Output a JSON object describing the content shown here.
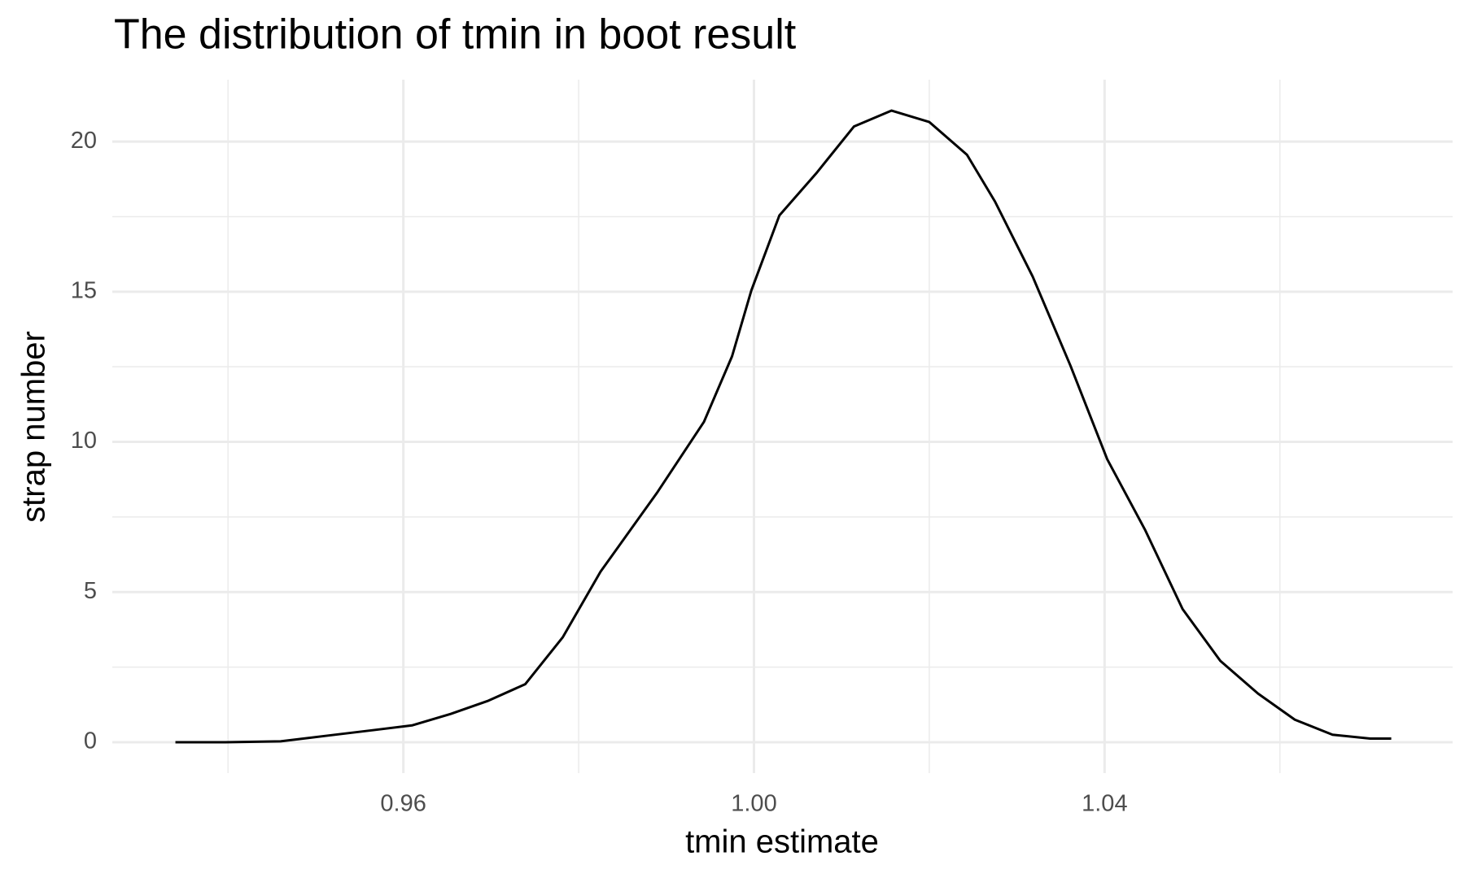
{
  "chart_data": {
    "type": "line",
    "title": "The distribution of tmin in boot result",
    "x_label": "tmin estimate",
    "y_label": "strap number",
    "x": [
      0.934,
      0.9397,
      0.946,
      0.9514,
      0.9568,
      0.961,
      0.9654,
      0.9696,
      0.9739,
      0.9782,
      0.9825,
      0.989,
      0.9943,
      0.9975,
      0.9997,
      1.0029,
      1.0071,
      1.0114,
      1.0157,
      1.02,
      1.0243,
      1.0275,
      1.0318,
      1.0361,
      1.0403,
      1.0446,
      1.0489,
      1.0532,
      1.0575,
      1.0617,
      1.066,
      1.0703,
      1.0727
    ],
    "values": [
      0,
      0,
      0.03,
      0.22,
      0.41,
      0.56,
      0.94,
      1.37,
      1.93,
      3.5,
      5.68,
      8.33,
      10.67,
      12.85,
      15.04,
      17.54,
      18.94,
      20.5,
      21.03,
      20.65,
      19.56,
      18.0,
      15.5,
      12.54,
      9.42,
      7.08,
      4.43,
      2.71,
      1.62,
      0.75,
      0.25,
      0.12,
      0.12
    ],
    "color": "#000000",
    "xlim": [
      0.9268,
      1.0797
    ],
    "ylim": [
      -1.03,
      22.06
    ],
    "xticks": [
      0.96,
      {
        "value": 1,
        "label": "1.00"
      },
      1.04
    ],
    "yticks": [
      0,
      5,
      10,
      15,
      20
    ],
    "minor_xticks": [
      0.94,
      0.98,
      1.02,
      1.06
    ],
    "minor_yticks": [
      2.5,
      7.5,
      12.5,
      17.5
    ],
    "grid": true
  }
}
